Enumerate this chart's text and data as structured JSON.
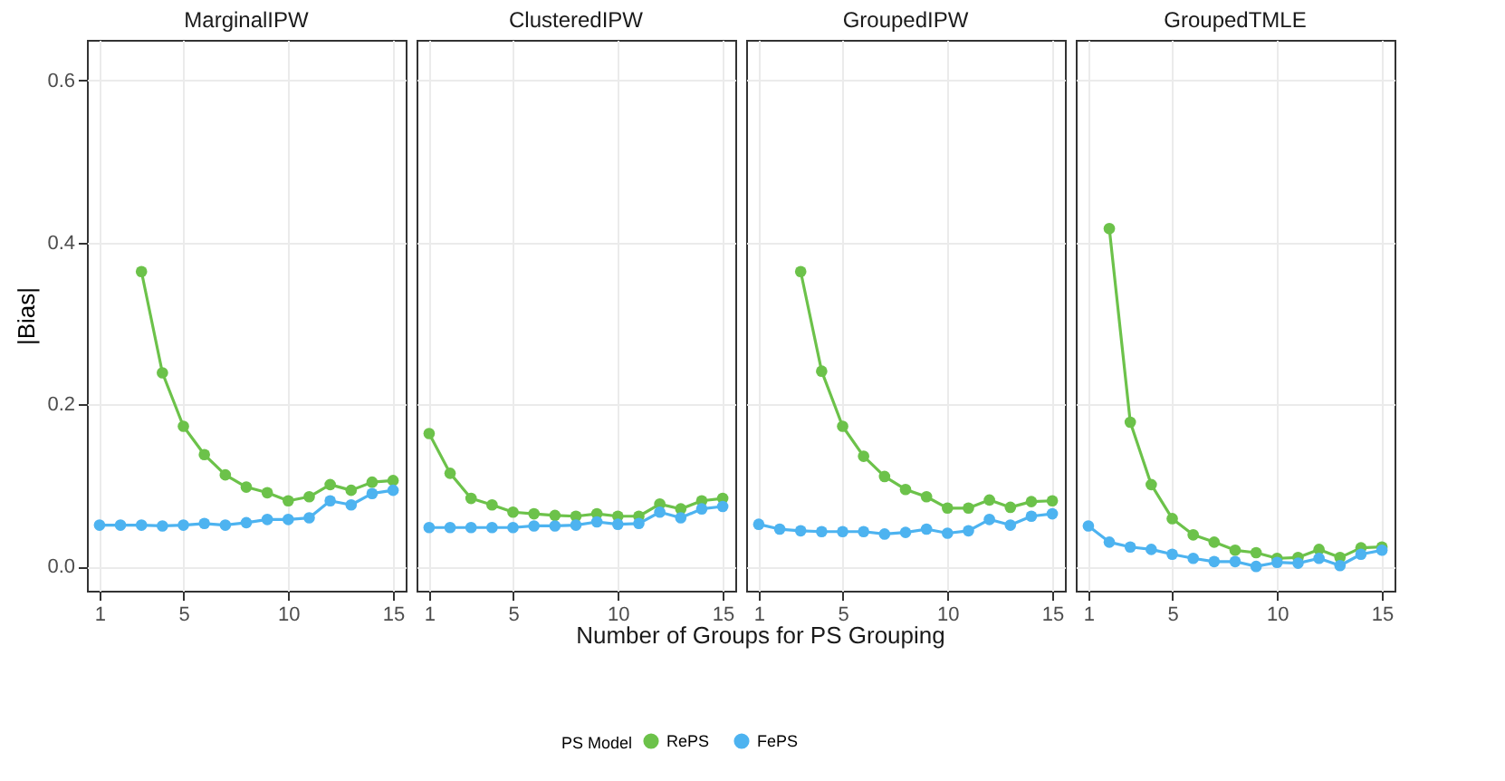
{
  "chart_data": [
    {
      "type": "line",
      "title": "MarginalIPW",
      "ylabel": "|Bias|",
      "legend_title": "PS Model",
      "legend": "bottom",
      "grid": true,
      "marker": "circle",
      "x": [
        1,
        2,
        3,
        4,
        5,
        6,
        7,
        8,
        9,
        10,
        11,
        12,
        13,
        14,
        15
      ],
      "xlim": [
        0.4,
        15.6
      ],
      "xticks": [
        1,
        5,
        10,
        15
      ],
      "ylim": [
        -0.03,
        0.65
      ],
      "yticks": [
        {
          "value": 0,
          "label": "0.0"
        },
        0.2,
        0.4,
        0.6
      ],
      "series": [
        {
          "name": "RePS",
          "color": "#6cc24a",
          "values": [
            null,
            null,
            0.364,
            0.239,
            0.173,
            0.138,
            0.113,
            0.098,
            0.091,
            0.081,
            0.086,
            0.101,
            0.094,
            0.104,
            0.106
          ]
        },
        {
          "name": "FePS",
          "color": "#4db3f0",
          "values": [
            0.051,
            0.051,
            0.051,
            0.05,
            0.051,
            0.053,
            0.051,
            0.054,
            0.058,
            0.058,
            0.06,
            0.081,
            0.076,
            0.09,
            0.094
          ]
        }
      ]
    },
    {
      "type": "line",
      "title": "ClusteredIPW",
      "grid": true,
      "marker": "circle",
      "tick_labels": "x",
      "x": [
        1,
        2,
        3,
        4,
        5,
        6,
        7,
        8,
        9,
        10,
        11,
        12,
        13,
        14,
        15
      ],
      "xlim": [
        0.4,
        15.6
      ],
      "xticks": [
        1,
        5,
        10,
        15
      ],
      "ylim": [
        -0.03,
        0.65
      ],
      "yticks": [
        0,
        0.2,
        0.4,
        0.6
      ],
      "series": [
        {
          "name": "RePS",
          "color": "#6cc24a",
          "values": [
            0.164,
            0.115,
            0.084,
            0.076,
            0.067,
            0.065,
            0.063,
            0.062,
            0.065,
            0.062,
            0.062,
            0.077,
            0.071,
            0.081,
            0.084
          ]
        },
        {
          "name": "FePS",
          "color": "#4db3f0",
          "values": [
            0.048,
            0.048,
            0.048,
            0.048,
            0.048,
            0.05,
            0.05,
            0.051,
            0.055,
            0.052,
            0.053,
            0.067,
            0.06,
            0.071,
            0.074
          ]
        }
      ]
    },
    {
      "type": "line",
      "title": "GroupedIPW",
      "xlabel": "Number of Groups for PS Grouping",
      "grid": true,
      "marker": "circle",
      "tick_labels": "x",
      "x": [
        1,
        2,
        3,
        4,
        5,
        6,
        7,
        8,
        9,
        10,
        11,
        12,
        13,
        14,
        15
      ],
      "xlim": [
        0.4,
        15.6
      ],
      "xticks": [
        1,
        5,
        10,
        15
      ],
      "ylim": [
        -0.03,
        0.65
      ],
      "yticks": [
        0,
        0.2,
        0.4,
        0.6
      ],
      "series": [
        {
          "name": "RePS",
          "color": "#6cc24a",
          "values": [
            null,
            null,
            0.364,
            0.241,
            0.173,
            0.136,
            0.111,
            0.095,
            0.086,
            0.072,
            0.072,
            0.082,
            0.073,
            0.08,
            0.081
          ]
        },
        {
          "name": "FePS",
          "color": "#4db3f0",
          "values": [
            0.052,
            0.046,
            0.044,
            0.043,
            0.043,
            0.043,
            0.04,
            0.042,
            0.046,
            0.041,
            0.044,
            0.058,
            0.051,
            0.062,
            0.065
          ]
        }
      ]
    },
    {
      "type": "line",
      "title": "GroupedTMLE",
      "grid": true,
      "marker": "circle",
      "tick_labels": "x",
      "x": [
        1,
        2,
        3,
        4,
        5,
        6,
        7,
        8,
        9,
        10,
        11,
        12,
        13,
        14,
        15
      ],
      "xlim": [
        0.4,
        15.6
      ],
      "xticks": [
        1,
        5,
        10,
        15
      ],
      "ylim": [
        -0.03,
        0.65
      ],
      "yticks": [
        0,
        0.2,
        0.4,
        0.6
      ],
      "series": [
        {
          "name": "RePS",
          "color": "#6cc24a",
          "values": [
            null,
            0.417,
            0.178,
            0.101,
            0.059,
            0.039,
            0.03,
            0.02,
            0.017,
            0.01,
            0.011,
            0.021,
            0.011,
            0.023,
            0.024
          ]
        },
        {
          "name": "FePS",
          "color": "#4db3f0",
          "values": [
            0.05,
            0.03,
            0.024,
            0.021,
            0.015,
            0.01,
            0.006,
            0.006,
            0.0,
            0.005,
            0.004,
            0.01,
            0.001,
            0.015,
            0.02
          ]
        }
      ]
    }
  ]
}
